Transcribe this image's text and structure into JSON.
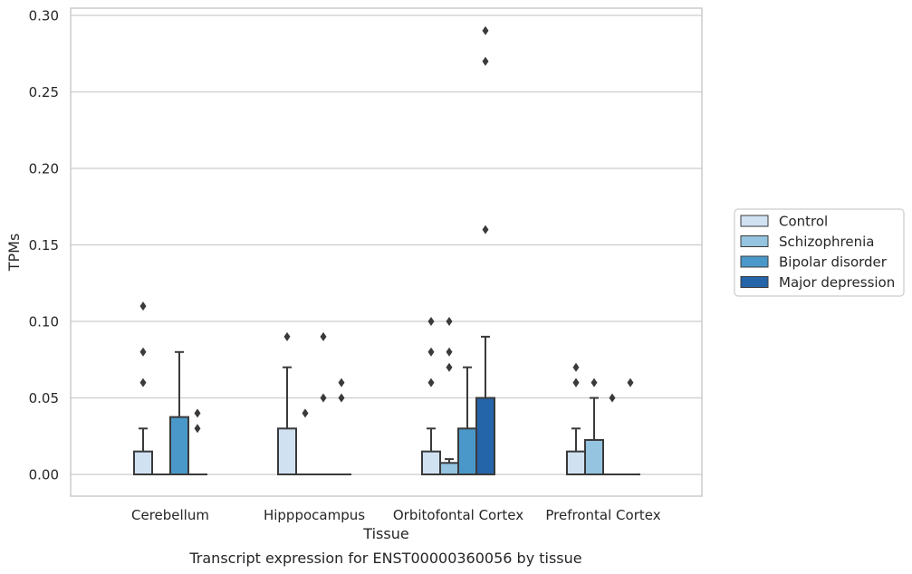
{
  "chart_data": {
    "type": "boxplot",
    "title": "",
    "caption": "Transcript expression for ENST00000360056 by tissue",
    "xlabel": "Tissue",
    "ylabel": "TPMs",
    "ylim": [
      -0.014,
      0.302
    ],
    "yticks": [
      "0.00",
      "0.05",
      "0.10",
      "0.15",
      "0.20",
      "0.25",
      "0.30"
    ],
    "ytick_values": [
      0.0,
      0.05,
      0.1,
      0.15,
      0.2,
      0.25,
      0.3
    ],
    "grid": "horizontal",
    "legend_position": "right",
    "categories": [
      "Cerebellum",
      "Hipppocampus",
      "Orbitofontal Cortex",
      "Prefrontal Cortex"
    ],
    "series": [
      {
        "name": "Control",
        "color": "#d0e1f2",
        "boxes": [
          {
            "q1": 0.0,
            "median": 0.0,
            "q3": 0.015,
            "whisker_low": 0.0,
            "whisker_high": 0.03,
            "outliers": [
              0.06,
              0.08,
              0.11
            ]
          },
          {
            "q1": 0.0,
            "median": 0.0,
            "q3": 0.03,
            "whisker_low": 0.0,
            "whisker_high": 0.07,
            "outliers": [
              0.09
            ]
          },
          {
            "q1": 0.0,
            "median": 0.0,
            "q3": 0.015,
            "whisker_low": 0.0,
            "whisker_high": 0.03,
            "outliers": [
              0.06,
              0.08,
              0.1
            ]
          },
          {
            "q1": 0.0,
            "median": 0.0,
            "q3": 0.015,
            "whisker_low": 0.0,
            "whisker_high": 0.03,
            "outliers": [
              0.06,
              0.06,
              0.07
            ]
          }
        ]
      },
      {
        "name": "Schizophrenia",
        "color": "#94c4df",
        "boxes": [
          {
            "q1": 0.0,
            "median": 0.0,
            "q3": 0.0,
            "whisker_low": 0.0,
            "whisker_high": 0.0,
            "outliers": []
          },
          {
            "q1": 0.0,
            "median": 0.0,
            "q3": 0.0,
            "whisker_low": 0.0,
            "whisker_high": 0.0,
            "outliers": [
              0.04
            ]
          },
          {
            "q1": 0.0,
            "median": 0.0,
            "q3": 0.0075,
            "whisker_low": 0.0,
            "whisker_high": 0.01,
            "outliers": [
              0.07,
              0.08,
              0.1
            ]
          },
          {
            "q1": 0.0,
            "median": 0.0,
            "q3": 0.0225,
            "whisker_low": 0.0,
            "whisker_high": 0.05,
            "outliers": [
              0.06
            ]
          }
        ]
      },
      {
        "name": "Bipolar disorder",
        "color": "#4a98c9",
        "boxes": [
          {
            "q1": 0.0,
            "median": 0.0,
            "q3": 0.0375,
            "whisker_low": 0.0,
            "whisker_high": 0.08,
            "outliers": []
          },
          {
            "q1": 0.0,
            "median": 0.0,
            "q3": 0.0,
            "whisker_low": 0.0,
            "whisker_high": 0.0,
            "outliers": [
              0.05,
              0.09
            ]
          },
          {
            "q1": 0.0,
            "median": 0.0,
            "q3": 0.03,
            "whisker_low": 0.0,
            "whisker_high": 0.07,
            "outliers": []
          },
          {
            "q1": 0.0,
            "median": 0.0,
            "q3": 0.0,
            "whisker_low": 0.0,
            "whisker_high": 0.0,
            "outliers": [
              0.05
            ]
          }
        ]
      },
      {
        "name": "Major depression",
        "color": "#2464a8",
        "boxes": [
          {
            "q1": 0.0,
            "median": 0.0,
            "q3": 0.0,
            "whisker_low": 0.0,
            "whisker_high": 0.0,
            "outliers": [
              0.03,
              0.04
            ]
          },
          {
            "q1": 0.0,
            "median": 0.0,
            "q3": 0.0,
            "whisker_low": 0.0,
            "whisker_high": 0.0,
            "outliers": [
              0.05,
              0.06
            ]
          },
          {
            "q1": 0.0,
            "median": 0.0,
            "q3": 0.05,
            "whisker_low": 0.0,
            "whisker_high": 0.09,
            "outliers": [
              0.16,
              0.27,
              0.29
            ]
          },
          {
            "q1": 0.0,
            "median": 0.0,
            "q3": 0.0,
            "whisker_low": 0.0,
            "whisker_high": 0.0,
            "outliers": [
              0.06
            ]
          }
        ]
      }
    ]
  }
}
